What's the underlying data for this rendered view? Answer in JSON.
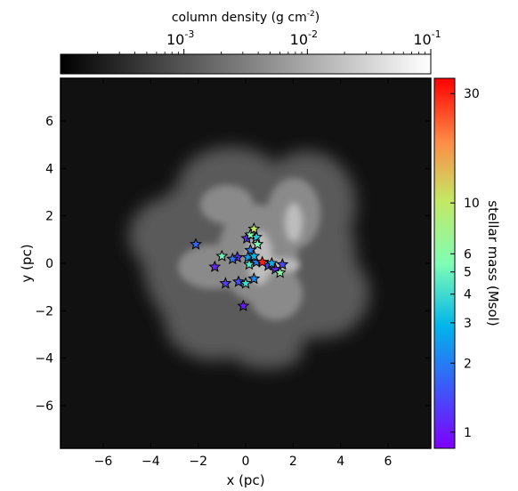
{
  "chart_data": {
    "type": "scatter",
    "xlabel": "x (pc)",
    "ylabel": "y (pc)",
    "xlim": [
      -7.8,
      7.8
    ],
    "ylim": [
      -7.8,
      7.8
    ],
    "x_ticks": [
      -6,
      -4,
      -2,
      0,
      2,
      4,
      6
    ],
    "y_ticks": [
      -6,
      -4,
      -2,
      0,
      2,
      4,
      6
    ],
    "x_tick_labels": [
      "−6",
      "−4",
      "−2",
      "0",
      "2",
      "4",
      "6"
    ],
    "y_tick_labels": [
      "−6",
      "−4",
      "−2",
      "0",
      "2",
      "4",
      "6"
    ],
    "marker": "star",
    "background": "column density map (grayscale gas cloud)",
    "top_colorbar": {
      "label_base": "column density (g cm",
      "label_exp": "-2",
      "label_close": ")",
      "scale": "log",
      "range": [
        0.0001,
        0.1
      ],
      "colors": [
        "#000000",
        "#ffffff"
      ],
      "ticks": [
        {
          "value": 0.001,
          "base": "10",
          "exp": "-3"
        },
        {
          "value": 0.01,
          "base": "10",
          "exp": "-2"
        },
        {
          "value": 0.1,
          "base": "10",
          "exp": "-1"
        }
      ]
    },
    "right_colorbar": {
      "label": "stellar mass (Msol)",
      "scale": "log",
      "range": [
        0.85,
        35
      ],
      "ticks": [
        1,
        2,
        3,
        4,
        5,
        6,
        10,
        30
      ],
      "tick_labels": [
        "1",
        "2",
        "3",
        "4",
        "5",
        "6",
        "10",
        "30"
      ]
    },
    "stars": [
      {
        "x": -2.1,
        "y": 0.8,
        "mass": 1.7
      },
      {
        "x": -1.3,
        "y": -0.15,
        "mass": 1.1
      },
      {
        "x": -1.0,
        "y": 0.3,
        "mass": 5.0
      },
      {
        "x": -0.85,
        "y": -0.85,
        "mass": 1.3
      },
      {
        "x": -0.55,
        "y": 0.18,
        "mass": 1.9
      },
      {
        "x": -0.35,
        "y": 0.25,
        "mass": 1.2
      },
      {
        "x": -0.3,
        "y": -0.78,
        "mass": 1.5
      },
      {
        "x": 0.0,
        "y": -0.85,
        "mass": 4.0
      },
      {
        "x": -0.1,
        "y": -1.8,
        "mass": 1.0
      },
      {
        "x": 0.05,
        "y": 1.05,
        "mass": 1.2
      },
      {
        "x": 0.2,
        "y": 1.2,
        "mass": 6.0
      },
      {
        "x": 0.35,
        "y": 1.45,
        "mass": 10.0
      },
      {
        "x": 0.45,
        "y": 1.1,
        "mass": 3.5
      },
      {
        "x": 0.5,
        "y": 0.8,
        "mass": 5.5
      },
      {
        "x": 0.2,
        "y": 0.55,
        "mass": 2.0
      },
      {
        "x": 0.1,
        "y": 0.25,
        "mass": 2.5
      },
      {
        "x": 0.35,
        "y": 0.3,
        "mass": 3.0
      },
      {
        "x": 0.15,
        "y": -0.05,
        "mass": 4.5
      },
      {
        "x": 0.45,
        "y": 0.05,
        "mass": 2.0
      },
      {
        "x": 0.7,
        "y": 0.05,
        "mass": 30.0
      },
      {
        "x": 0.95,
        "y": -0.1,
        "mass": 1.3
      },
      {
        "x": 1.1,
        "y": 0.0,
        "mass": 2.8
      },
      {
        "x": 1.25,
        "y": -0.25,
        "mass": 1.1
      },
      {
        "x": 1.55,
        "y": -0.05,
        "mass": 1.4
      },
      {
        "x": 1.45,
        "y": -0.4,
        "mass": 6.0
      },
      {
        "x": 0.35,
        "y": -0.65,
        "mass": 2.2
      }
    ]
  }
}
